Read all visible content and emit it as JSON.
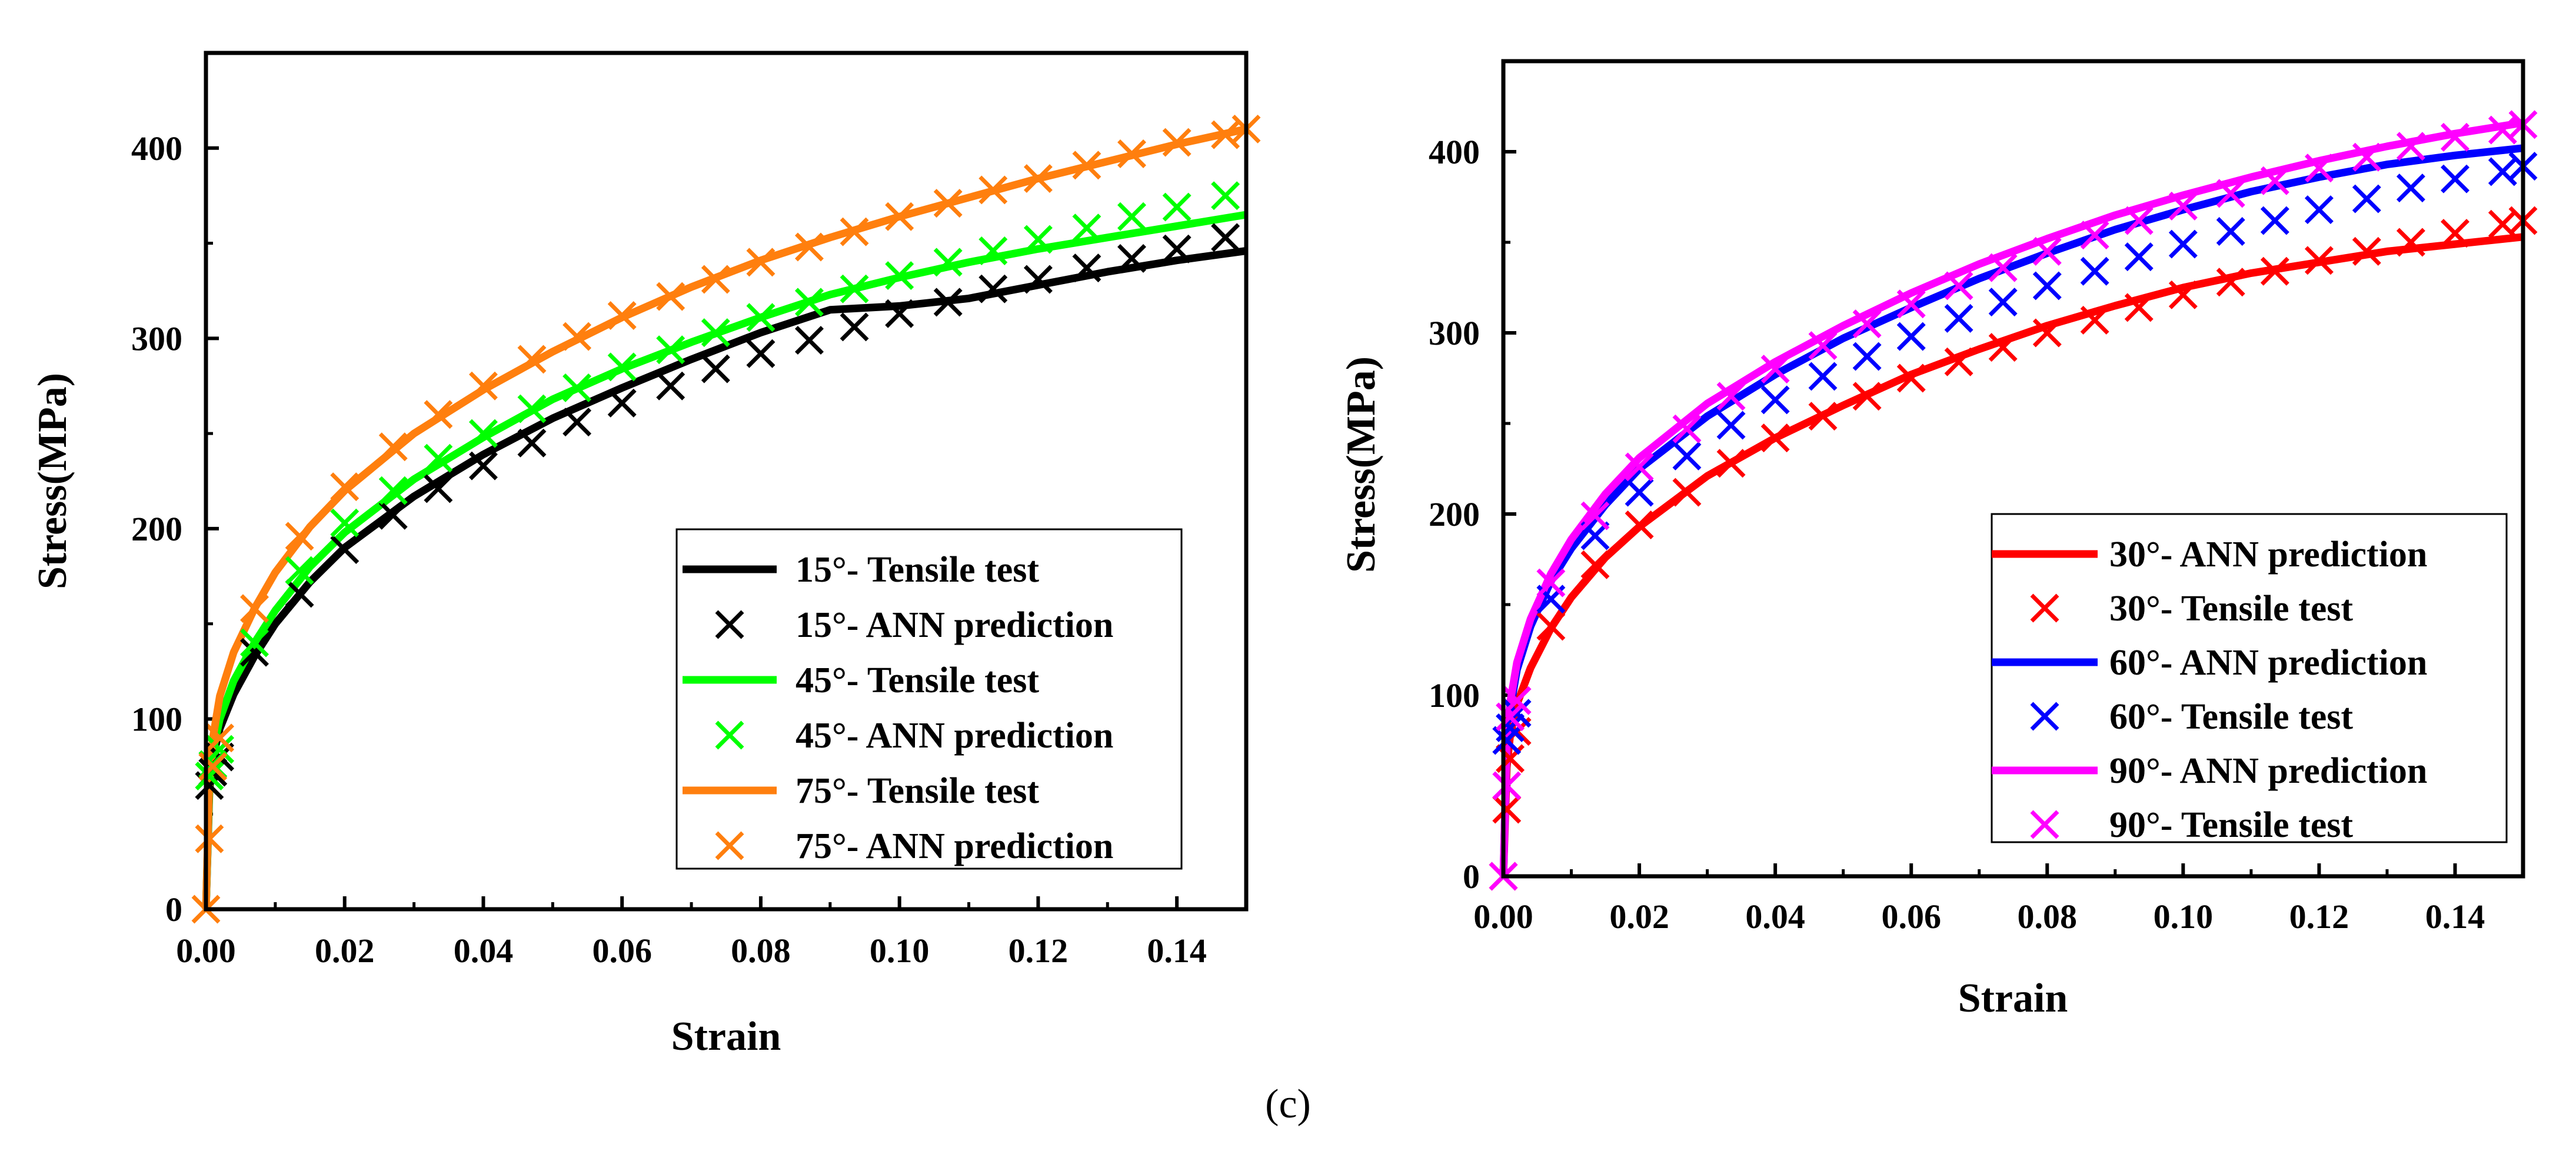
{
  "figure": {
    "caption": "(c)"
  },
  "chart_data": [
    {
      "type": "line",
      "panel": "left",
      "xlabel": "Strain",
      "ylabel": "Stress(MPa)",
      "xlim": [
        0,
        0.15
      ],
      "ylim": [
        0,
        450
      ],
      "xticks": [
        0.0,
        0.02,
        0.04,
        0.06,
        0.08,
        0.1,
        0.12,
        0.14
      ],
      "xtick_labels": [
        "0.00",
        "0.02",
        "0.04",
        "0.06",
        "0.08",
        "0.10",
        "0.12",
        "0.14"
      ],
      "yticks": [
        0,
        100,
        200,
        300,
        400
      ],
      "ytick_labels": [
        "0",
        "100",
        "200",
        "300",
        "400"
      ],
      "legend_position": "lower-right",
      "series": [
        {
          "name": "15°- Tensile test",
          "style": "line",
          "color": "#000000",
          "x": [
            0,
            0.0005,
            0.001,
            0.002,
            0.004,
            0.007,
            0.01,
            0.015,
            0.02,
            0.03,
            0.04,
            0.05,
            0.06,
            0.07,
            0.08,
            0.09,
            0.1,
            0.11,
            0.12,
            0.13,
            0.14,
            0.15
          ],
          "y": [
            0,
            62,
            80,
            95,
            113,
            133,
            150,
            172,
            190,
            217,
            239,
            258,
            274,
            289,
            303,
            315,
            317,
            321,
            328,
            335,
            341,
            346
          ]
        },
        {
          "name": "15°- ANN prediction",
          "style": "marker",
          "color": "#000000",
          "x": [
            0.0005,
            0.001,
            0.002,
            0.007,
            0.0135,
            0.02,
            0.027,
            0.0335,
            0.04,
            0.047,
            0.0535,
            0.06,
            0.067,
            0.0735,
            0.08,
            0.087,
            0.0935,
            0.1,
            0.107,
            0.1135,
            0.12,
            0.127,
            0.1335,
            0.14,
            0.147
          ],
          "y": [
            65,
            72,
            80,
            135,
            166,
            189,
            207,
            221,
            233,
            245,
            256,
            266,
            275,
            284,
            292,
            299,
            306,
            313,
            319,
            326,
            331,
            337,
            342,
            347,
            353
          ]
        },
        {
          "name": "45°- Tensile test",
          "style": "line",
          "color": "#00ff00",
          "x": [
            0,
            0.0005,
            0.001,
            0.002,
            0.004,
            0.007,
            0.01,
            0.015,
            0.02,
            0.03,
            0.04,
            0.05,
            0.06,
            0.07,
            0.08,
            0.09,
            0.1,
            0.11,
            0.12,
            0.13,
            0.14,
            0.15
          ],
          "y": [
            0,
            65,
            83,
            100,
            120,
            140,
            157,
            180,
            198,
            226,
            248,
            268,
            284,
            298,
            311,
            323,
            332,
            340,
            347,
            353,
            359,
            365
          ]
        },
        {
          "name": "45°- ANN prediction",
          "style": "marker",
          "color": "#00ff00",
          "x": [
            0.0005,
            0.001,
            0.002,
            0.007,
            0.0135,
            0.02,
            0.027,
            0.0335,
            0.04,
            0.047,
            0.0535,
            0.06,
            0.067,
            0.0735,
            0.08,
            0.087,
            0.0935,
            0.1,
            0.107,
            0.1135,
            0.12,
            0.127,
            0.1335,
            0.14,
            0.147
          ],
          "y": [
            70,
            76,
            84,
            140,
            178,
            203,
            220,
            237,
            250,
            263,
            274,
            285,
            294,
            303,
            311,
            319,
            326,
            333,
            340,
            346,
            352,
            358,
            364,
            369,
            375
          ]
        },
        {
          "name": "75°- Tensile test",
          "style": "line",
          "color": "#ff7f0e",
          "x": [
            0,
            0.0005,
            0.001,
            0.002,
            0.004,
            0.007,
            0.01,
            0.015,
            0.02,
            0.03,
            0.04,
            0.05,
            0.06,
            0.07,
            0.08,
            0.09,
            0.1,
            0.11,
            0.12,
            0.13,
            0.14,
            0.15
          ],
          "y": [
            0,
            70,
            90,
            112,
            135,
            158,
            177,
            201,
            220,
            250,
            273,
            293,
            311,
            327,
            341,
            353,
            364,
            374,
            384,
            393,
            402,
            410
          ]
        },
        {
          "name": "75°- ANN prediction",
          "style": "marker",
          "color": "#ff7f0e",
          "x": [
            0,
            0.0005,
            0.001,
            0.002,
            0.007,
            0.0135,
            0.02,
            0.027,
            0.0335,
            0.04,
            0.047,
            0.0535,
            0.06,
            0.067,
            0.0735,
            0.08,
            0.087,
            0.0935,
            0.1,
            0.107,
            0.1135,
            0.12,
            0.127,
            0.1335,
            0.14,
            0.147,
            0.15
          ],
          "y": [
            0,
            37,
            75,
            90,
            158,
            196,
            222,
            243,
            260,
            275,
            289,
            301,
            312,
            322,
            331,
            340,
            348,
            356,
            364,
            371,
            378,
            384,
            391,
            397,
            403,
            407,
            410
          ]
        }
      ]
    },
    {
      "type": "line",
      "panel": "right",
      "xlabel": "Strain",
      "ylabel": "Stress(MPa)",
      "xlim": [
        0,
        0.15
      ],
      "ylim": [
        0,
        450
      ],
      "xticks": [
        0.0,
        0.02,
        0.04,
        0.06,
        0.08,
        0.1,
        0.12,
        0.14
      ],
      "xtick_labels": [
        "0.00",
        "0.02",
        "0.04",
        "0.06",
        "0.08",
        "0.10",
        "0.12",
        "0.14"
      ],
      "yticks": [
        0,
        100,
        200,
        300,
        400
      ],
      "ytick_labels": [
        "0",
        "100",
        "200",
        "300",
        "400"
      ],
      "legend_position": "lower-right",
      "series": [
        {
          "name": "30°- ANN prediction",
          "style": "line",
          "color": "#ff0000",
          "x": [
            0,
            0.0005,
            0.001,
            0.002,
            0.004,
            0.007,
            0.01,
            0.015,
            0.02,
            0.03,
            0.04,
            0.05,
            0.06,
            0.07,
            0.08,
            0.09,
            0.1,
            0.11,
            0.12,
            0.13,
            0.14,
            0.15
          ],
          "y": [
            0,
            60,
            78,
            95,
            115,
            137,
            154,
            176,
            193,
            221,
            242,
            260,
            277,
            291,
            304,
            315,
            325,
            333,
            339,
            345,
            349,
            353
          ]
        },
        {
          "name": "30°- Tensile test",
          "style": "marker",
          "color": "#ff0000",
          "x": [
            0,
            0.0005,
            0.001,
            0.002,
            0.007,
            0.0135,
            0.02,
            0.027,
            0.0335,
            0.04,
            0.047,
            0.0535,
            0.06,
            0.067,
            0.0735,
            0.08,
            0.087,
            0.0935,
            0.1,
            0.107,
            0.1135,
            0.12,
            0.127,
            0.1335,
            0.14,
            0.147,
            0.15
          ],
          "y": [
            0,
            37,
            65,
            80,
            138,
            172,
            194,
            212,
            228,
            242,
            254,
            265,
            275,
            284,
            292,
            300,
            307,
            314,
            321,
            328,
            334,
            340,
            345,
            350,
            355,
            360,
            362
          ]
        },
        {
          "name": "60°- ANN prediction",
          "style": "line",
          "color": "#0000ff",
          "x": [
            0,
            0.0005,
            0.001,
            0.002,
            0.004,
            0.007,
            0.01,
            0.015,
            0.02,
            0.03,
            0.04,
            0.05,
            0.06,
            0.07,
            0.08,
            0.09,
            0.1,
            0.11,
            0.12,
            0.13,
            0.14,
            0.15
          ],
          "y": [
            0,
            72,
            92,
            114,
            138,
            163,
            181,
            205,
            225,
            254,
            277,
            297,
            314,
            330,
            344,
            357,
            368,
            378,
            386,
            393,
            398,
            402
          ]
        },
        {
          "name": "60°- Tensile test",
          "style": "marker",
          "color": "#0000ff",
          "x": [
            0.0005,
            0.001,
            0.002,
            0.007,
            0.0135,
            0.02,
            0.027,
            0.0335,
            0.04,
            0.047,
            0.0535,
            0.06,
            0.067,
            0.0735,
            0.08,
            0.087,
            0.0935,
            0.1,
            0.107,
            0.1135,
            0.12,
            0.127,
            0.1335,
            0.14,
            0.147,
            0.15
          ],
          "y": [
            75,
            82,
            90,
            153,
            188,
            212,
            232,
            249,
            263,
            276,
            287,
            298,
            308,
            317,
            326,
            334,
            342,
            349,
            356,
            362,
            368,
            374,
            380,
            385,
            389,
            392
          ]
        },
        {
          "name": "90°- ANN prediction",
          "style": "line",
          "color": "#ff00ff",
          "x": [
            0,
            0.0005,
            0.001,
            0.002,
            0.004,
            0.007,
            0.01,
            0.015,
            0.02,
            0.03,
            0.04,
            0.05,
            0.06,
            0.07,
            0.08,
            0.09,
            0.1,
            0.11,
            0.12,
            0.13,
            0.14,
            0.15
          ],
          "y": [
            0,
            75,
            96,
            118,
            142,
            167,
            186,
            211,
            231,
            261,
            284,
            304,
            322,
            338,
            352,
            365,
            376,
            386,
            395,
            403,
            410,
            416
          ]
        },
        {
          "name": "90°- Tensile test",
          "style": "marker",
          "color": "#ff00ff",
          "x": [
            0,
            0.0005,
            0.001,
            0.002,
            0.007,
            0.0135,
            0.02,
            0.027,
            0.0335,
            0.04,
            0.047,
            0.0535,
            0.06,
            0.067,
            0.0735,
            0.08,
            0.087,
            0.0935,
            0.1,
            0.107,
            0.1135,
            0.12,
            0.127,
            0.1335,
            0.14,
            0.147,
            0.15
          ],
          "y": [
            0,
            50,
            88,
            97,
            162,
            199,
            226,
            247,
            265,
            280,
            293,
            305,
            316,
            326,
            336,
            345,
            354,
            362,
            370,
            377,
            384,
            391,
            397,
            403,
            408,
            412,
            415
          ]
        }
      ]
    }
  ]
}
